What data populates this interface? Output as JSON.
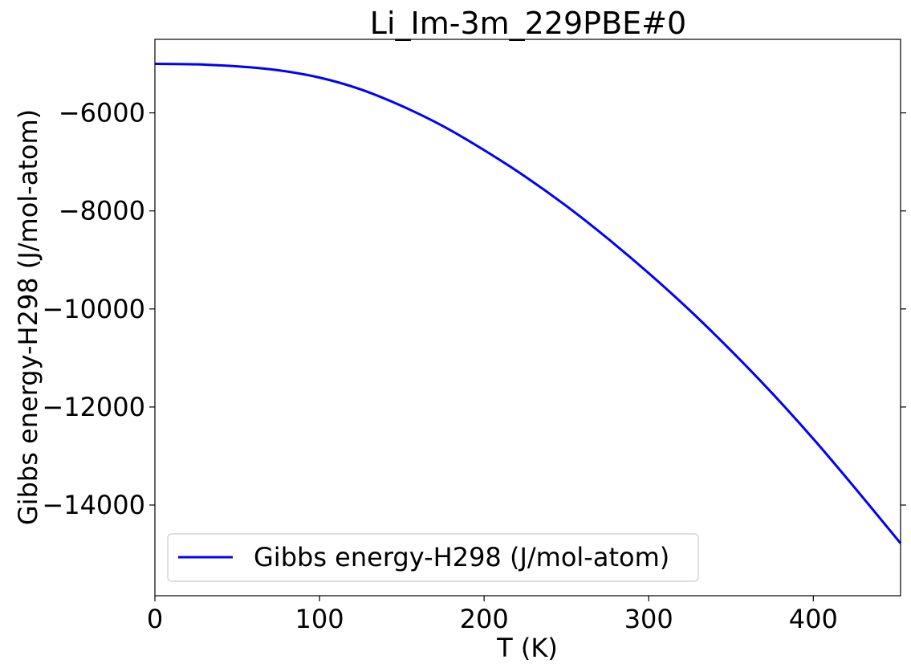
{
  "chart_data": {
    "type": "line",
    "title": "Li_Im-3m_229PBE#0",
    "xlabel": "T (K)",
    "ylabel": "Gibbs energy-H298 (J/mol-atom)",
    "xlim": [
      0,
      453
    ],
    "ylim": [
      -15850,
      -4500
    ],
    "x_ticks": [
      0,
      100,
      200,
      300,
      400
    ],
    "x_tick_labels": [
      "0",
      "100",
      "200",
      "300",
      "400"
    ],
    "y_ticks": [
      -14000,
      -12000,
      -10000,
      -8000,
      -6000
    ],
    "y_tick_labels": [
      "−14000",
      "−12000",
      "−10000",
      "−8000",
      "−6000"
    ],
    "grid": false,
    "legend_position": "lower-left",
    "series": [
      {
        "name": "Gibbs energy-H298 (J/mol-atom)",
        "color": "#0000ff",
        "x": [
          0,
          25,
          50,
          75,
          100,
          125,
          150,
          175,
          200,
          225,
          250,
          275,
          300,
          325,
          350,
          375,
          400,
          425,
          453
        ],
        "y": [
          -5000,
          -5010,
          -5050,
          -5130,
          -5280,
          -5520,
          -5860,
          -6270,
          -6760,
          -7300,
          -7900,
          -8560,
          -9270,
          -10030,
          -10850,
          -11720,
          -12650,
          -13640,
          -14780
        ]
      }
    ]
  }
}
